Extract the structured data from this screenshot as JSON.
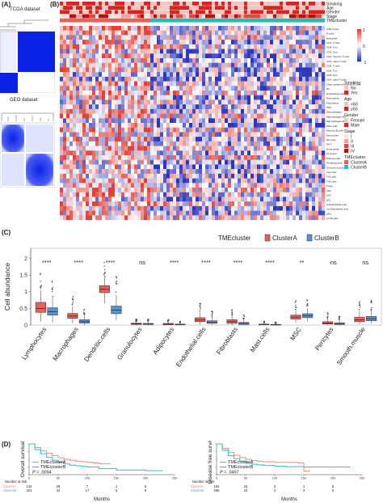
{
  "panels": {
    "a": {
      "letter": "(A)",
      "tcga_title": "TCGA dataset",
      "geo_title": "GEO dataset"
    },
    "b": {
      "letter": "(B)",
      "annotation_rows": [
        "Smoking",
        "Age",
        "Gender",
        "Stage",
        "TMEcluster"
      ],
      "cell_types": [
        "Adipocytes",
        "B.cells",
        "Basophils",
        "CD4..T.cells",
        "CD4..Tcm",
        "CD4..Tem",
        "CD4..memory.T.cells",
        "CD4..naive.T.cells",
        "CD8..T.cells",
        "CD8..Tcm",
        "CD8..Tem",
        "CD8..naive.T.cells",
        "Class.switched.memory.B.cells",
        "DC",
        "Endothelial.cells",
        "Eosinophils",
        "Fibroblasts",
        "HSC",
        "Macrophages",
        "Macrophages.M1",
        "Macrophages.M2",
        "Mast.cells",
        "Memory.B.cells",
        "Monocytes",
        "NK.cells",
        "NKT",
        "Neutrophils",
        "Pericytes",
        "Plasma.cells",
        "Preadipocytes",
        "Smooth.muscle",
        "Tgd.cells",
        "Th1.cells",
        "Th2.cells",
        "Tregs",
        "aDC",
        "cDC",
        "iDC",
        "ly.Endothelial.cells",
        "mv.Endothelial.cells",
        "pDC",
        "pro.B.cells"
      ],
      "colorbar_ticks": [
        "1",
        "0",
        "-1"
      ],
      "legend": {
        "smoking_title": "Smoking",
        "smoking_items": [
          "No",
          "Yes"
        ],
        "age_title": "Age",
        "age_items": [
          "<60",
          "≥60"
        ],
        "gender_title": "Gender",
        "gender_items": [
          "Female",
          "Male"
        ],
        "stage_title": "Stage",
        "stage_items": [
          "I",
          "II",
          "III",
          "IV"
        ],
        "tme_title": "TMEcluster",
        "tme_items": [
          "ClusterA",
          "ClusterB"
        ]
      }
    },
    "c": {
      "letter": "(C)"
    },
    "d": {
      "letter": "(D)"
    }
  },
  "chart_data": [
    {
      "type": "box",
      "id": "cell-abundance",
      "ylabel": "Cell abundance",
      "ylim": [
        0,
        2.3
      ],
      "yticks": [
        0,
        0.5,
        1,
        1.5,
        2
      ],
      "legend_title": "TMEcluster",
      "legend_position": "top-right",
      "categories": [
        "Lymphocytes",
        "Macrophages",
        "Dendritic.cells",
        "Granulocytes",
        "Adipocytes",
        "Endothelial.cells",
        "Fibroblasts",
        "Mast.cells",
        "MSC",
        "Pericytes",
        "Smooth.muscle"
      ],
      "significance": [
        "****",
        "****",
        "****",
        "ns",
        "****",
        "****",
        "****",
        "****",
        "**",
        "ns",
        "ns"
      ],
      "series": [
        {
          "name": "ClusterA",
          "color": "#e8605a",
          "stats": [
            [
              0.1,
              0.38,
              0.5,
              0.68,
              1.05
            ],
            [
              0.06,
              0.2,
              0.27,
              0.35,
              0.55
            ],
            [
              0.65,
              0.97,
              1.07,
              1.18,
              1.45
            ],
            [
              0,
              0.02,
              0.04,
              0.06,
              0.1
            ],
            [
              0,
              0.01,
              0.03,
              0.05,
              0.09
            ],
            [
              0.02,
              0.1,
              0.15,
              0.22,
              0.38
            ],
            [
              0,
              0.05,
              0.1,
              0.16,
              0.3
            ],
            [
              0,
              0.01,
              0.02,
              0.03,
              0.06
            ],
            [
              0.08,
              0.18,
              0.24,
              0.3,
              0.46
            ],
            [
              0,
              0.03,
              0.06,
              0.1,
              0.2
            ],
            [
              0.03,
              0.1,
              0.16,
              0.24,
              0.42
            ]
          ]
        },
        {
          "name": "ClusterB",
          "color": "#5b8fd6",
          "stats": [
            [
              0.08,
              0.3,
              0.4,
              0.52,
              0.82
            ],
            [
              0,
              0.06,
              0.1,
              0.16,
              0.3
            ],
            [
              0.15,
              0.34,
              0.45,
              0.57,
              0.9
            ],
            [
              0,
              0.02,
              0.03,
              0.05,
              0.09
            ],
            [
              0,
              0.01,
              0.02,
              0.03,
              0.06
            ],
            [
              0.01,
              0.05,
              0.09,
              0.13,
              0.24
            ],
            [
              0,
              0.02,
              0.05,
              0.08,
              0.16
            ],
            [
              0,
              0.005,
              0.01,
              0.02,
              0.04
            ],
            [
              0.12,
              0.22,
              0.28,
              0.34,
              0.5
            ],
            [
              0,
              0.02,
              0.04,
              0.07,
              0.14
            ],
            [
              0.05,
              0.13,
              0.19,
              0.26,
              0.44
            ]
          ]
        }
      ]
    },
    {
      "type": "line",
      "id": "overall-survival",
      "ylabel": "Overall survival",
      "xlabel": "Months",
      "xlim": [
        0,
        250
      ],
      "ylim": [
        0,
        1
      ],
      "yticks": [
        0,
        0.25,
        0.5,
        0.75,
        1
      ],
      "xticks": [
        0,
        50,
        100,
        150,
        200,
        250
      ],
      "pvalue_label": "P",
      "pvalue": "= .0094",
      "risk_title": "Number at risk",
      "risk_rows": [
        {
          "name": "ClusterA",
          "counts": [
            "142",
            "29",
            "7",
            "1",
            "0"
          ]
        },
        {
          "name": "ClusterB",
          "counts": [
            "321",
            "44",
            "17",
            "5",
            "0"
          ]
        }
      ],
      "series": [
        {
          "name": "TMEclusterA",
          "color": "#f08a84",
          "x": [
            0,
            10,
            20,
            30,
            40,
            50,
            60,
            70,
            80,
            90,
            100,
            110,
            120,
            140
          ],
          "y": [
            1,
            0.88,
            0.78,
            0.7,
            0.62,
            0.55,
            0.5,
            0.47,
            0.44,
            0.42,
            0.4,
            0.38,
            0.36,
            0.36
          ]
        },
        {
          "name": "TMEclusterB",
          "color": "#27c4c9",
          "x": [
            0,
            10,
            20,
            30,
            40,
            50,
            60,
            70,
            80,
            90,
            100,
            120,
            150,
            200,
            230
          ],
          "y": [
            1,
            0.82,
            0.68,
            0.57,
            0.47,
            0.4,
            0.35,
            0.31,
            0.29,
            0.27,
            0.25,
            0.2,
            0.15,
            0.13,
            0.13
          ]
        }
      ]
    },
    {
      "type": "line",
      "id": "disease-free-survival",
      "ylabel": "Disease free survival",
      "xlabel": "Months",
      "xlim": [
        0,
        250
      ],
      "ylim": [
        0,
        1
      ],
      "yticks": [
        0,
        0.25,
        0.5,
        0.75,
        1
      ],
      "xticks": [
        0,
        50,
        100,
        150,
        200,
        250
      ],
      "pvalue_label": "P",
      "pvalue": "= .0497",
      "risk_title": "Number at risk",
      "risk_rows": [
        {
          "name": "ClusterA",
          "counts": [
            "162",
            "23",
            "3",
            "1",
            "0"
          ]
        },
        {
          "name": "ClusterB",
          "counts": [
            "295",
            "24",
            "4",
            "3",
            "0"
          ]
        }
      ],
      "series": [
        {
          "name": "TMEclusterA",
          "color": "#f08a84",
          "x": [
            0,
            10,
            20,
            30,
            40,
            50,
            60,
            70,
            80,
            100,
            120,
            140,
            150,
            160
          ],
          "y": [
            1,
            0.86,
            0.72,
            0.63,
            0.56,
            0.5,
            0.46,
            0.44,
            0.42,
            0.4,
            0.4,
            0.38,
            0.12,
            0.12
          ]
        },
        {
          "name": "TMEclusterB",
          "color": "#27c4c9",
          "x": [
            0,
            10,
            20,
            30,
            40,
            50,
            60,
            70,
            80,
            100,
            120,
            150,
            180,
            230
          ],
          "y": [
            1,
            0.8,
            0.62,
            0.52,
            0.44,
            0.38,
            0.34,
            0.32,
            0.3,
            0.28,
            0.26,
            0.25,
            0.25,
            0.25
          ]
        }
      ]
    }
  ]
}
